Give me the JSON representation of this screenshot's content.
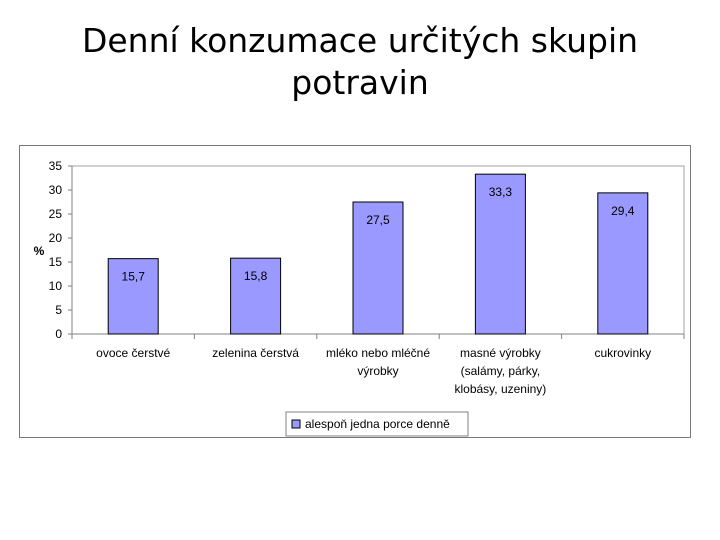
{
  "page": {
    "title": "Denní konzumace určitých skupin potravin"
  },
  "chart_data": {
    "type": "bar",
    "title": "",
    "xlabel": "",
    "ylabel": "%",
    "ylim": [
      0,
      35
    ],
    "yticks": [
      0,
      5,
      10,
      15,
      20,
      25,
      30,
      35
    ],
    "grid": false,
    "legend": "bottom",
    "categories": [
      [
        "ovoce čerstvé"
      ],
      [
        "zelenina čerstvá"
      ],
      [
        "mléko nebo mléčné",
        "výrobky"
      ],
      [
        "masné výrobky",
        "(salámy, párky,",
        "klobásy, uzeniny)"
      ],
      [
        "cukrovinky"
      ]
    ],
    "series": [
      {
        "name": "alespoň jedna porce denně",
        "values": [
          15.7,
          15.8,
          27.5,
          33.3,
          29.4
        ],
        "value_labels": [
          "15,7",
          "15,8",
          "27,5",
          "33,3",
          "29,4"
        ],
        "color": "#9999ff"
      }
    ],
    "colors": {
      "bar_fill": "#9999ff",
      "bar_stroke": "#000000",
      "plot_border": "#a0a0a0",
      "axis": "#808080"
    }
  }
}
